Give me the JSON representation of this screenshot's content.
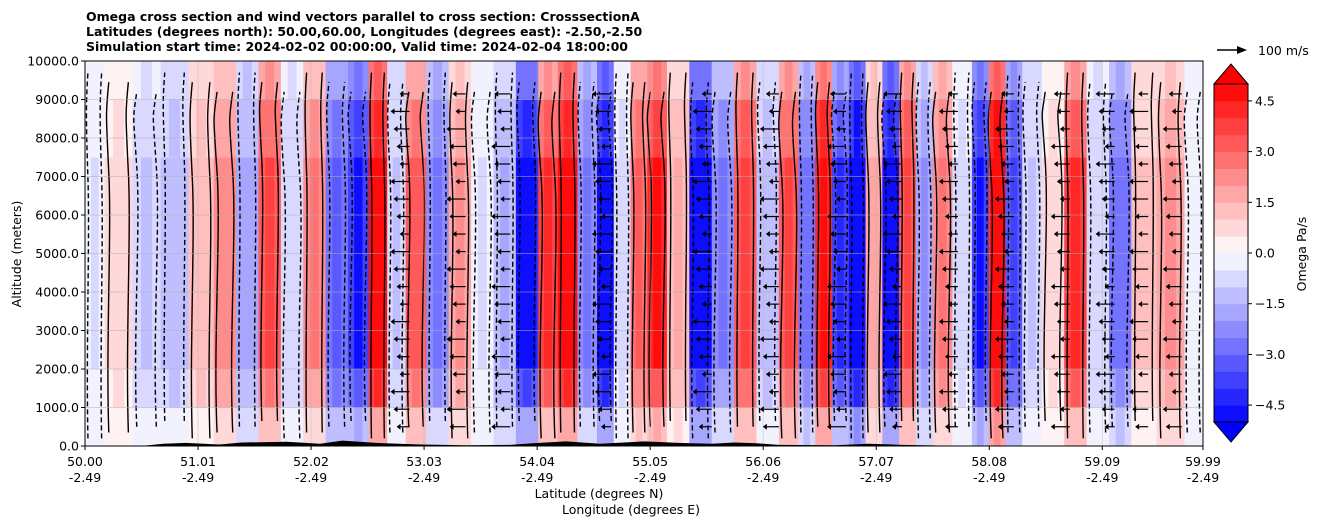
{
  "chart_data": {
    "type": "heatmap",
    "title_lines": [
      "Omega cross section and wind vectors parallel to cross section: CrosssectionA",
      "Latitudes (degrees north): 50.00,60.00, Longitudes (degrees east): -2.50,-2.50",
      "Simulation start time: 2024-02-02 00:00:00, Valid time: 2024-02-04 18:00:00"
    ],
    "xlabel_lat": "Latitude (degrees N)",
    "xlabel_lon": "Longitude (degrees E)",
    "ylabel": "Altitude (meters)",
    "xlim": [
      50.0,
      59.99
    ],
    "ylim": [
      0,
      10000
    ],
    "x_ticks": [
      {
        "lat": "50.00",
        "lon": "-2.49",
        "v": 50.0
      },
      {
        "lat": "51.01",
        "lon": "-2.49",
        "v": 51.01
      },
      {
        "lat": "52.02",
        "lon": "-2.49",
        "v": 52.02
      },
      {
        "lat": "53.03",
        "lon": "-2.49",
        "v": 53.03
      },
      {
        "lat": "54.04",
        "lon": "-2.49",
        "v": 54.04
      },
      {
        "lat": "55.05",
        "lon": "-2.49",
        "v": 55.05
      },
      {
        "lat": "56.06",
        "lon": "-2.49",
        "v": 56.06
      },
      {
        "lat": "57.07",
        "lon": "-2.49",
        "v": 57.07
      },
      {
        "lat": "58.08",
        "lon": "-2.49",
        "v": 58.08
      },
      {
        "lat": "59.09",
        "lon": "-2.49",
        "v": 59.09
      },
      {
        "lat": "59.99",
        "lon": "-2.49",
        "v": 59.99
      }
    ],
    "y_ticks": [
      {
        "label": "0.0",
        "v": 0
      },
      {
        "label": "1000.0",
        "v": 1000
      },
      {
        "label": "2000.0",
        "v": 2000
      },
      {
        "label": "3000.0",
        "v": 3000
      },
      {
        "label": "4000.0",
        "v": 4000
      },
      {
        "label": "5000.0",
        "v": 5000
      },
      {
        "label": "6000.0",
        "v": 6000
      },
      {
        "label": "7000.0",
        "v": 7000
      },
      {
        "label": "8000.0",
        "v": 8000
      },
      {
        "label": "9000.0",
        "v": 9000
      },
      {
        "label": "10000.0",
        "v": 10000
      }
    ],
    "grid": true,
    "colorbar": {
      "label": "Omega Pa/s",
      "vmin": -5.0,
      "vmax": 5.0,
      "levels": 20,
      "extend": "both",
      "cmap": "bwr",
      "ticks": [
        {
          "label": "4.5",
          "v": 4.5
        },
        {
          "label": "3.0",
          "v": 3.0
        },
        {
          "label": "1.5",
          "v": 1.5
        },
        {
          "label": "0.0",
          "v": 0.0
        },
        {
          "label": "−1.5",
          "v": -1.5
        },
        {
          "label": "−3.0",
          "v": -3.0
        },
        {
          "label": "−4.5",
          "v": -4.5
        }
      ]
    },
    "vector_key": {
      "label": "100 m/s"
    },
    "omega_bands": [
      {
        "lat": 50.05,
        "omega": -0.5
      },
      {
        "lat": 50.3,
        "omega": 0.6
      },
      {
        "lat": 50.55,
        "omega": -0.9
      },
      {
        "lat": 50.8,
        "omega": -1.2
      },
      {
        "lat": 51.05,
        "omega": 1.2
      },
      {
        "lat": 51.25,
        "omega": 2.0
      },
      {
        "lat": 51.45,
        "omega": -1.6
      },
      {
        "lat": 51.65,
        "omega": 3.2
      },
      {
        "lat": 51.85,
        "omega": -0.8
      },
      {
        "lat": 52.05,
        "omega": 2.2
      },
      {
        "lat": 52.25,
        "omega": -3.0
      },
      {
        "lat": 52.45,
        "omega": -4.0
      },
      {
        "lat": 52.62,
        "omega": 4.8
      },
      {
        "lat": 52.78,
        "omega": -1.0
      },
      {
        "lat": 52.95,
        "omega": 3.0
      },
      {
        "lat": 53.15,
        "omega": -2.4
      },
      {
        "lat": 53.35,
        "omega": 1.8
      },
      {
        "lat": 53.55,
        "omega": -0.5
      },
      {
        "lat": 53.75,
        "omega": -1.5
      },
      {
        "lat": 53.95,
        "omega": -4.6
      },
      {
        "lat": 54.15,
        "omega": 3.6
      },
      {
        "lat": 54.3,
        "omega": 4.8
      },
      {
        "lat": 54.5,
        "omega": -2.4
      },
      {
        "lat": 54.65,
        "omega": -4.8
      },
      {
        "lat": 54.8,
        "omega": -0.6
      },
      {
        "lat": 54.95,
        "omega": 2.8
      },
      {
        "lat": 55.1,
        "omega": 4.0
      },
      {
        "lat": 55.3,
        "omega": 1.4
      },
      {
        "lat": 55.5,
        "omega": -4.6
      },
      {
        "lat": 55.7,
        "omega": -2.2
      },
      {
        "lat": 55.9,
        "omega": 3.4
      },
      {
        "lat": 56.1,
        "omega": -1.2
      },
      {
        "lat": 56.3,
        "omega": 3.2
      },
      {
        "lat": 56.45,
        "omega": -2.6
      },
      {
        "lat": 56.6,
        "omega": 4.4
      },
      {
        "lat": 56.75,
        "omega": -3.6
      },
      {
        "lat": 56.9,
        "omega": -5.0
      },
      {
        "lat": 57.05,
        "omega": 1.6
      },
      {
        "lat": 57.2,
        "omega": -4.8
      },
      {
        "lat": 57.35,
        "omega": 3.4
      },
      {
        "lat": 57.5,
        "omega": -1.8
      },
      {
        "lat": 57.65,
        "omega": 2.4
      },
      {
        "lat": 57.85,
        "omega": -0.6
      },
      {
        "lat": 58.0,
        "omega": -4.0
      },
      {
        "lat": 58.15,
        "omega": 5.0
      },
      {
        "lat": 58.3,
        "omega": -3.4
      },
      {
        "lat": 58.45,
        "omega": -1.0
      },
      {
        "lat": 58.65,
        "omega": 0.6
      },
      {
        "lat": 58.85,
        "omega": 3.6
      },
      {
        "lat": 59.05,
        "omega": -0.8
      },
      {
        "lat": 59.25,
        "omega": -2.6
      },
      {
        "lat": 59.45,
        "omega": 1.0
      },
      {
        "lat": 59.7,
        "omega": 1.8
      },
      {
        "lat": 59.95,
        "omega": -0.4
      }
    ],
    "colors": {
      "axis": "#000000",
      "grid": "#b0b0b0",
      "terrain": "#000000"
    }
  }
}
